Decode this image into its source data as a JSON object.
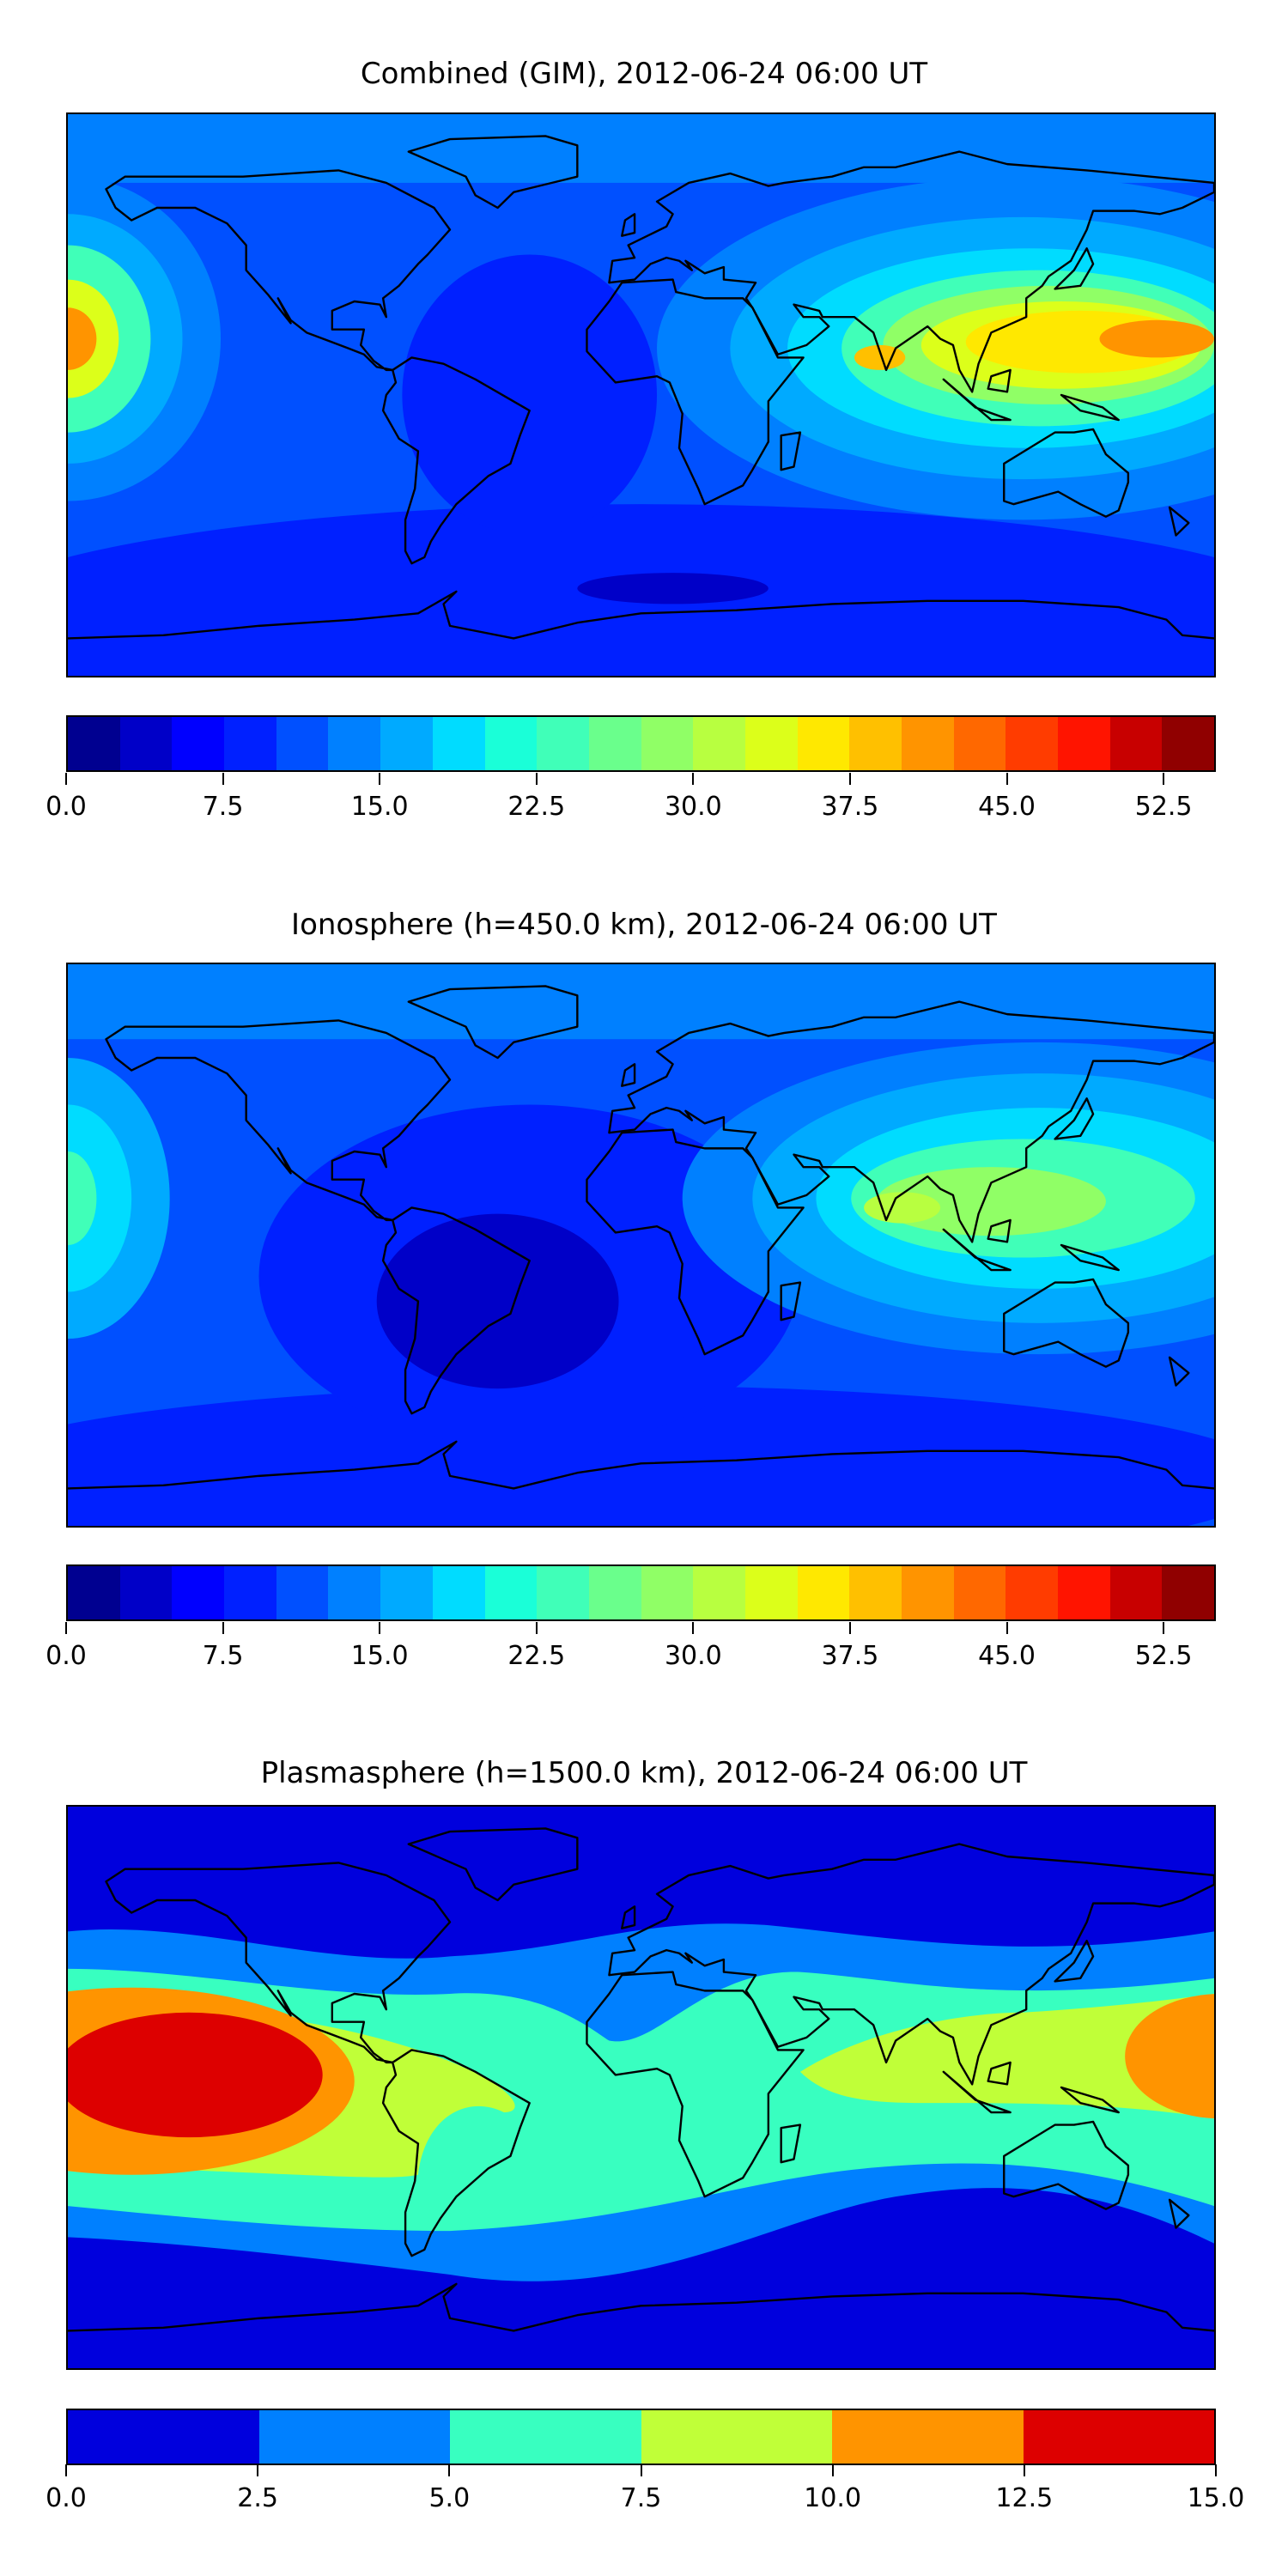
{
  "chart_data": [
    {
      "type": "heatmap",
      "subtype": "filled-contour world map",
      "title": "Combined (GIM), 2012-06-24 06:00 UT",
      "colorbar": {
        "range": [
          0,
          55
        ],
        "levels_step": 2.5,
        "ticks": [
          "0.0",
          "7.5",
          "15.0",
          "22.5",
          "30.0",
          "37.5",
          "45.0",
          "52.5"
        ],
        "tick_values": [
          0,
          7.5,
          15,
          22.5,
          30,
          37.5,
          45,
          52.5
        ],
        "colors": [
          "#000090",
          "#0000c8",
          "#0000ff",
          "#0020ff",
          "#0050ff",
          "#0080ff",
          "#00aaff",
          "#00dcff",
          "#1affd8",
          "#40ffb8",
          "#6aff8c",
          "#90ff66",
          "#b8ff40",
          "#dcff1a",
          "#ffe800",
          "#ffc000",
          "#ff9400",
          "#ff6800",
          "#ff3c00",
          "#ff1400",
          "#c80000",
          "#900000"
        ]
      },
      "features": {
        "max_region": "SE Asia / W Pacific, ~40-42.5",
        "secondary_max": "Central Pacific (~160W), ~37.5-40",
        "min_region": "South Atlantic / Southern Ocean, ~5-7.5"
      }
    },
    {
      "type": "heatmap",
      "subtype": "filled-contour world map",
      "title": "Ionosphere  (h=450.0 km), 2012-06-24 06:00 UT",
      "colorbar": {
        "range": [
          0,
          55
        ],
        "levels_step": 2.5,
        "ticks": [
          "0.0",
          "7.5",
          "15.0",
          "22.5",
          "30.0",
          "37.5",
          "45.0",
          "52.5"
        ],
        "tick_values": [
          0,
          7.5,
          15,
          22.5,
          30,
          37.5,
          45,
          52.5
        ],
        "colors": [
          "#000090",
          "#0000c8",
          "#0000ff",
          "#0020ff",
          "#0050ff",
          "#0080ff",
          "#00aaff",
          "#00dcff",
          "#1affd8",
          "#40ffb8",
          "#6aff8c",
          "#90ff66",
          "#b8ff40",
          "#dcff1a",
          "#ffe800",
          "#ffc000",
          "#ff9400",
          "#ff6800",
          "#ff3c00",
          "#ff1400",
          "#c80000",
          "#900000"
        ]
      },
      "features": {
        "max_region": "India / SE Asia, ~30-32.5",
        "min_region": "South Atlantic, ~2.5-5"
      }
    },
    {
      "type": "heatmap",
      "subtype": "filled-contour world map",
      "title": "Plasmasphere (h=1500.0 km), 2012-06-24 06:00 UT",
      "colorbar": {
        "range": [
          0,
          15
        ],
        "levels_step": 2.5,
        "ticks": [
          "0.0",
          "2.5",
          "5.0",
          "7.5",
          "10.0",
          "12.5",
          "15.0"
        ],
        "tick_values": [
          0,
          2.5,
          5,
          7.5,
          10,
          12.5,
          15
        ],
        "colors": [
          "#0000dd",
          "#0080ff",
          "#38ffc0",
          "#c0ff38",
          "#ff9400",
          "#dd0000"
        ]
      },
      "features": {
        "max_region": "Central Pacific, 12.5-15",
        "min_region": "High latitudes, 0-2.5"
      }
    }
  ]
}
